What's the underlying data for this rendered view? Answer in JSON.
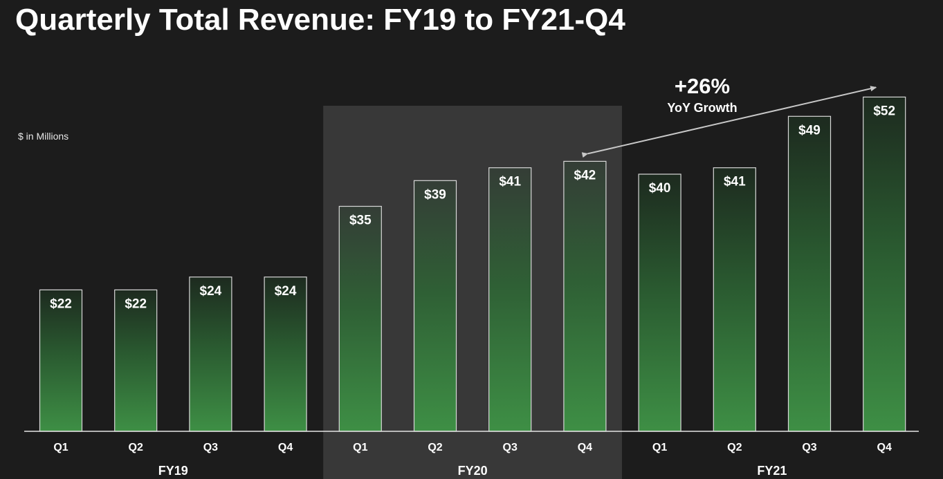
{
  "chart_data": {
    "type": "bar",
    "title": "Quarterly Total Revenue: FY19 to FY21-Q4",
    "units_note": "$ in Millions",
    "ylim": [
      0,
      60
    ],
    "groups": [
      {
        "name": "FY19",
        "categories": [
          "Q1",
          "Q2",
          "Q3",
          "Q4"
        ],
        "values": [
          22,
          22,
          24,
          24
        ],
        "labels": [
          "$22",
          "$22",
          "$24",
          "$24"
        ]
      },
      {
        "name": "FY20",
        "categories": [
          "Q1",
          "Q2",
          "Q3",
          "Q4"
        ],
        "values": [
          35,
          39,
          41,
          42
        ],
        "labels": [
          "$35",
          "$39",
          "$41",
          "$42"
        ]
      },
      {
        "name": "FY21",
        "categories": [
          "Q1",
          "Q2",
          "Q3",
          "Q4"
        ],
        "values": [
          40,
          41,
          49,
          52
        ],
        "labels": [
          "$40",
          "$41",
          "$49",
          "$52"
        ]
      }
    ],
    "highlighted_group": "FY20",
    "annotation": {
      "value": "+26%",
      "label": "YoY Growth",
      "from": {
        "group": "FY20",
        "category": "Q4"
      },
      "to": {
        "group": "FY21",
        "category": "Q4"
      }
    }
  },
  "colors": {
    "background": "#1c1c1c",
    "highlight_panel": "#383838",
    "bar_top": "#1d2a1f",
    "bar_bottom": "#3e8f45",
    "bar_border": "#d9d9d9",
    "axis": "#e6e6e6",
    "arrow": "#c8c8c8"
  }
}
